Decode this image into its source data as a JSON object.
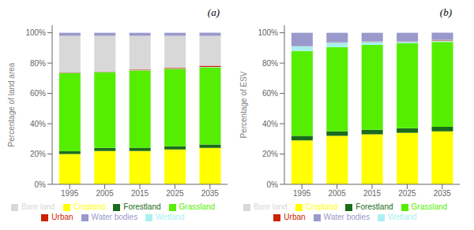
{
  "chart_data": [
    {
      "type": "bar",
      "title": "(a)",
      "y_label": "Percentage of land area",
      "categories": [
        1995,
        2005,
        2015,
        2025,
        2035
      ],
      "stacked": true,
      "grid": false,
      "legend": "bottom",
      "ylim": [
        0,
        105
      ],
      "yticks": [
        {
          "value": 0,
          "label": "0%"
        },
        {
          "value": 20,
          "label": "20%"
        },
        {
          "value": 40,
          "label": "40%"
        },
        {
          "value": 60,
          "label": "60%"
        },
        {
          "value": 80,
          "label": "80%"
        },
        {
          "value": 100,
          "label": "100%"
        }
      ],
      "series": [
        {
          "name": "Cropland",
          "color": "#ffff00",
          "values": [
            20.0,
            22.0,
            22.0,
            23.0,
            24.0
          ]
        },
        {
          "name": "Forestland",
          "color": "#1a6b1a",
          "values": [
            1.8,
            2.0,
            2.1,
            2.1,
            2.2
          ]
        },
        {
          "name": "Grassland",
          "color": "#55ee00",
          "values": [
            51.5,
            50.0,
            51.0,
            51.0,
            51.0
          ]
        },
        {
          "name": "Wetland",
          "color": "#aaf0f0",
          "values": [
            0.3,
            0.2,
            0.2,
            0.2,
            0.2
          ]
        },
        {
          "name": "Urban",
          "color": "#cc2200",
          "values": [
            0.2,
            0.3,
            0.4,
            0.5,
            0.8
          ]
        },
        {
          "name": "Bare land",
          "color": "#d8d8d8",
          "values": [
            24.2,
            23.5,
            22.3,
            21.2,
            19.8
          ]
        },
        {
          "name": "Water bodies",
          "color": "#9999cc",
          "values": [
            2.0,
            2.0,
            2.0,
            2.0,
            2.0
          ]
        }
      ]
    },
    {
      "type": "bar",
      "title": "(b)",
      "y_label": "Percentage of ESV",
      "categories": [
        1995,
        2005,
        2015,
        2025,
        2035
      ],
      "stacked": true,
      "grid": false,
      "legend": "bottom",
      "ylim": [
        0,
        105
      ],
      "yticks": [
        {
          "value": 0,
          "label": "0%"
        },
        {
          "value": 20,
          "label": "20%"
        },
        {
          "value": 40,
          "label": "40%"
        },
        {
          "value": 60,
          "label": "60%"
        },
        {
          "value": 80,
          "label": "80%"
        },
        {
          "value": 100,
          "label": "100%"
        }
      ],
      "series": [
        {
          "name": "Cropland",
          "color": "#ffff00",
          "values": [
            29.0,
            32.0,
            33.0,
            34.0,
            35.0
          ]
        },
        {
          "name": "Forestland",
          "color": "#1a6b1a",
          "values": [
            3.0,
            3.0,
            3.0,
            3.0,
            3.0
          ]
        },
        {
          "name": "Grassland",
          "color": "#55ee00",
          "values": [
            56.0,
            55.5,
            56.0,
            56.0,
            56.0
          ]
        },
        {
          "name": "Wetland",
          "color": "#aaf0f0",
          "values": [
            3.0,
            3.0,
            2.0,
            1.0,
            0.8
          ]
        },
        {
          "name": "Urban",
          "color": "#cc2200",
          "values": [
            0.1,
            0.1,
            0.2,
            0.2,
            0.5
          ]
        },
        {
          "name": "Bare land",
          "color": "#d8d8d8",
          "values": [
            0.1,
            0.1,
            0.1,
            0.1,
            0.1
          ]
        },
        {
          "name": "Water bodies",
          "color": "#9999cc",
          "values": [
            8.8,
            6.3,
            5.7,
            5.7,
            4.6
          ]
        }
      ]
    }
  ]
}
